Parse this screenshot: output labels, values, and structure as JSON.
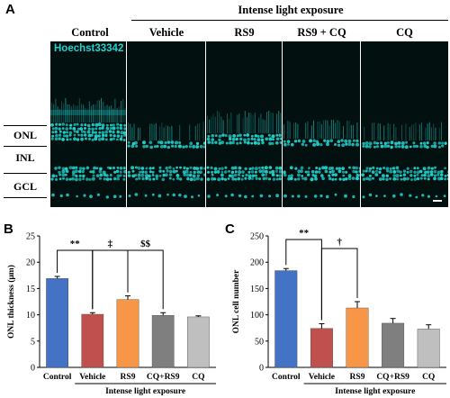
{
  "panel_a": {
    "letter": "A",
    "header_group": "Intense light exposure",
    "stain_label": "Hoechst33342",
    "columns": [
      "Control",
      "Vehicle",
      "RS9",
      "RS9 + CQ",
      "CQ"
    ],
    "layers": [
      "ONL",
      "INL",
      "GCL"
    ],
    "colors": {
      "nuclei": "#22d3cf",
      "background": "#02100f"
    }
  },
  "chart_data": [
    {
      "type": "bar",
      "letter": "B",
      "categories": [
        "Control",
        "Vehicle",
        "RS9",
        "CQ+RS9",
        "CQ"
      ],
      "values": [
        16.9,
        10.1,
        12.9,
        9.9,
        9.6
      ],
      "errors": [
        0.4,
        0.3,
        0.7,
        0.5,
        0.2
      ],
      "colors": [
        "#4472c4",
        "#c0504d",
        "#f79646",
        "#7f7f7f",
        "#bfbfbf"
      ],
      "ylabel": "ONL thickness (μm)",
      "xlabel": "Intense light exposure",
      "ylim": [
        0,
        25
      ],
      "yticks": [
        0,
        5,
        10,
        15,
        20,
        25
      ],
      "brackets": [
        {
          "from": 0,
          "to": 1,
          "label": "**"
        },
        {
          "from": 1,
          "to": 2,
          "label": "‡"
        },
        {
          "from": 2,
          "to": 3,
          "label": "$$"
        }
      ]
    },
    {
      "type": "bar",
      "letter": "C",
      "categories": [
        "Control",
        "Vehicle",
        "RS9",
        "CQ+RS9",
        "CQ"
      ],
      "values": [
        184,
        74,
        113,
        84,
        73
      ],
      "errors": [
        4,
        9,
        12,
        9,
        8
      ],
      "colors": [
        "#4472c4",
        "#c0504d",
        "#f79646",
        "#7f7f7f",
        "#bfbfbf"
      ],
      "ylabel": "ONL cell number",
      "xlabel": "Intense light exposure",
      "ylim": [
        0,
        250
      ],
      "yticks": [
        0,
        50,
        100,
        150,
        200,
        250
      ],
      "brackets": [
        {
          "from": 0,
          "to": 1,
          "label": "**"
        },
        {
          "from": 1,
          "to": 2,
          "label": "†"
        }
      ]
    }
  ]
}
